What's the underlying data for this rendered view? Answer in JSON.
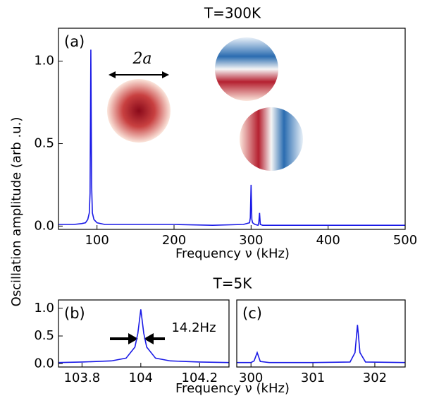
{
  "chart_data": [
    {
      "type": "line",
      "title": "T=300K",
      "panel_label": "(a)",
      "xlabel": "Frequency ν (kHz)",
      "ylabel": "Oscillation amplitude (arb .u.)",
      "annotation": "2a",
      "xlim": [
        50,
        500
      ],
      "ylim": [
        -0.02,
        1.2
      ],
      "xticks": [
        100,
        200,
        300,
        400,
        500
      ],
      "yticks": [
        {
          "value": 0,
          "label": "0.0"
        },
        {
          "value": 0.5,
          "label": "0.5"
        },
        {
          "value": 1,
          "label": "1.0"
        }
      ],
      "color": "#1a1ae6",
      "x": [
        50,
        60,
        70,
        80,
        85,
        88,
        90,
        91,
        92,
        93,
        94,
        96,
        100,
        110,
        150,
        200,
        250,
        290,
        298,
        299,
        300,
        301,
        302,
        305,
        309,
        310,
        311,
        312,
        315,
        350,
        400,
        450,
        500
      ],
      "values": [
        0.01,
        0.01,
        0.01,
        0.015,
        0.02,
        0.04,
        0.08,
        0.2,
        1.07,
        0.25,
        0.08,
        0.04,
        0.02,
        0.01,
        0.01,
        0.01,
        0.005,
        0.01,
        0.02,
        0.05,
        0.25,
        0.04,
        0.02,
        0.01,
        0.005,
        0.02,
        0.08,
        0.01,
        0.005,
        0.005,
        0.005,
        0.005,
        0.005
      ]
    },
    {
      "type": "line",
      "title": "T=5K",
      "panel_label": "(b)",
      "xlabel": "Frequency ν (kHz)",
      "annotation": "14.2Hz",
      "xlim": [
        103.72,
        104.3
      ],
      "ylim": [
        -0.06,
        1.15
      ],
      "xticks": [
        103.8,
        104,
        104.2
      ],
      "yticks": [
        {
          "value": 0,
          "label": "0.0"
        },
        {
          "value": 0.5,
          "label": "0.5"
        },
        {
          "value": 1,
          "label": "1.0"
        }
      ],
      "color": "#1a1ae6",
      "x": [
        103.72,
        103.8,
        103.9,
        103.95,
        103.98,
        103.99,
        104,
        104.01,
        104.02,
        104.05,
        104.1,
        104.2,
        104.3
      ],
      "values": [
        0.02,
        0.03,
        0.05,
        0.1,
        0.3,
        0.55,
        0.98,
        0.55,
        0.3,
        0.1,
        0.05,
        0.03,
        0.02
      ]
    },
    {
      "type": "line",
      "panel_label": "(c)",
      "xlim": [
        299.77,
        302.49
      ],
      "ylim": [
        -0.06,
        1.15
      ],
      "xticks": [
        300,
        301,
        302
      ],
      "color": "#1a1ae6",
      "x": [
        299.77,
        300,
        300.05,
        300.1,
        300.15,
        300.3,
        301,
        301.6,
        301.68,
        301.72,
        301.76,
        301.85,
        302.49
      ],
      "values": [
        0.02,
        0.02,
        0.05,
        0.2,
        0.04,
        0.02,
        0.02,
        0.03,
        0.2,
        0.7,
        0.2,
        0.03,
        0.02
      ]
    }
  ]
}
